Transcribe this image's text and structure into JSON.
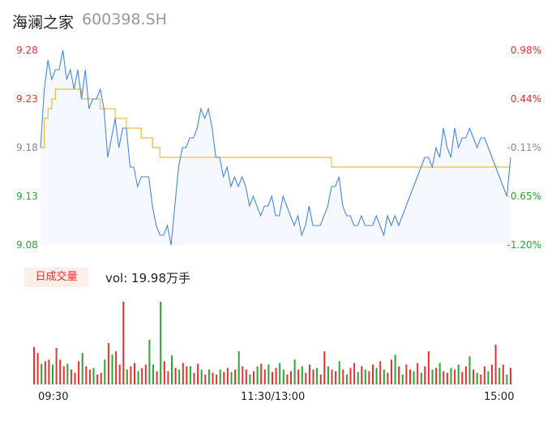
{
  "header": {
    "name": "海澜之家",
    "code": "600398.SH"
  },
  "volume_panel": {
    "tab_label": "日成交量",
    "vol_text": "vol: 19.98万手"
  },
  "chart_data": [
    {
      "type": "line",
      "name": "intraday",
      "y_tick_labels": [
        "9.28",
        "9.23",
        "9.18",
        "9.13",
        "9.08"
      ],
      "pct_tick_labels": [
        "0.98%",
        "0.44%",
        "-0.11%",
        "-0.65%",
        "-1.20%"
      ],
      "x_tick_labels": [
        "09:30",
        "11:30/13:00",
        "15:00"
      ],
      "ylim": [
        9.08,
        9.28
      ],
      "ref_price": 9.19,
      "colors": {
        "price": "#4a86e8",
        "avg": "#f5b942",
        "up": "#e8312f",
        "down": "#2aa530"
      },
      "series": [
        {
          "values": [
            9.18,
            9.24,
            9.27,
            9.25,
            9.26,
            9.26,
            9.28,
            9.25,
            9.26,
            9.24,
            9.26,
            9.23,
            9.26,
            9.22,
            9.23,
            9.23,
            9.24,
            9.22,
            9.17,
            9.19,
            9.21,
            9.18,
            9.2,
            9.2,
            9.16,
            9.16,
            9.14,
            9.15,
            9.15,
            9.15,
            9.12,
            9.1,
            9.09,
            9.09,
            9.1,
            9.08,
            9.12,
            9.16,
            9.18,
            9.18,
            9.19,
            9.19,
            9.2,
            9.22,
            9.21,
            9.22,
            9.2,
            9.17,
            9.17,
            9.15,
            9.16,
            9.14,
            9.15,
            9.14,
            9.15,
            9.14,
            9.12,
            9.13,
            9.12,
            9.11,
            9.12,
            9.12,
            9.13,
            9.11,
            9.11,
            9.13,
            9.12,
            9.11,
            9.1,
            9.11,
            9.09,
            9.1,
            9.12,
            9.1,
            9.1,
            9.1,
            9.11,
            9.12,
            9.14,
            9.14,
            9.15,
            9.12,
            9.11,
            9.11,
            9.1,
            9.1,
            9.11,
            9.1,
            9.1,
            9.1,
            9.11,
            9.1,
            9.09,
            9.11,
            9.1,
            9.11,
            9.1,
            9.11,
            9.12,
            9.13,
            9.14,
            9.15,
            9.16,
            9.17,
            9.17,
            9.16,
            9.18,
            9.17,
            9.2,
            9.18,
            9.17,
            9.2,
            9.18,
            9.19,
            9.19,
            9.2,
            9.19,
            9.18,
            9.19,
            9.19,
            9.18,
            9.17,
            9.16,
            9.15,
            9.14,
            9.13,
            9.17
          ]
        },
        {
          "values": [
            9.18,
            9.21,
            9.22,
            9.23,
            9.24,
            9.24,
            9.24,
            9.24,
            9.24,
            9.24,
            9.24,
            9.23,
            9.23,
            9.23,
            9.23,
            9.23,
            9.22,
            9.22,
            9.22,
            9.22,
            9.21,
            9.21,
            9.21,
            9.2,
            9.2,
            9.2,
            9.2,
            9.19,
            9.19,
            9.19,
            9.18,
            9.18,
            9.17,
            9.17,
            9.17,
            9.17,
            9.17,
            9.17,
            9.17,
            9.17,
            9.17,
            9.17,
            9.17,
            9.17,
            9.17,
            9.17,
            9.17,
            9.17,
            9.17,
            9.17,
            9.17,
            9.17,
            9.17,
            9.17,
            9.17,
            9.17,
            9.17,
            9.17,
            9.17,
            9.17,
            9.17,
            9.17,
            9.17,
            9.17,
            9.17,
            9.17,
            9.17,
            9.17,
            9.17,
            9.17,
            9.17,
            9.17,
            9.17,
            9.17,
            9.17,
            9.17,
            9.17,
            9.17,
            9.16,
            9.16,
            9.16,
            9.16,
            9.16,
            9.16,
            9.16,
            9.16,
            9.16,
            9.16,
            9.16,
            9.16,
            9.16,
            9.16,
            9.16,
            9.16,
            9.16,
            9.16,
            9.16,
            9.16,
            9.16,
            9.16,
            9.16,
            9.16,
            9.16,
            9.16,
            9.16,
            9.16,
            9.16,
            9.16,
            9.16,
            9.16,
            9.16,
            9.16,
            9.16,
            9.16,
            9.16,
            9.16,
            9.16,
            9.16,
            9.16,
            9.16,
            9.16,
            9.16,
            9.16,
            9.16,
            9.16,
            9.16,
            9.16
          ]
        }
      ]
    },
    {
      "type": "bar",
      "name": "volume",
      "values": [
        45,
        38,
        25,
        28,
        30,
        24,
        44,
        30,
        22,
        25,
        18,
        14,
        28,
        38,
        22,
        18,
        20,
        12,
        14,
        30,
        50,
        36,
        40,
        24,
        100,
        18,
        22,
        26,
        16,
        20,
        24,
        54,
        24,
        16,
        100,
        28,
        16,
        35,
        20,
        18,
        26,
        22,
        22,
        14,
        25,
        18,
        12,
        18,
        14,
        12,
        18,
        15,
        20,
        15,
        18,
        40,
        22,
        18,
        12,
        16,
        22,
        25,
        18,
        24,
        15,
        20,
        26,
        18,
        12,
        16,
        30,
        18,
        22,
        14,
        24,
        18,
        20,
        12,
        40,
        22,
        18,
        16,
        28,
        18,
        12,
        20,
        26,
        15,
        22,
        18,
        16,
        24,
        20,
        28,
        18,
        14,
        30,
        36,
        22,
        12,
        24,
        18,
        16,
        26,
        14,
        22,
        40,
        18,
        20,
        26,
        16,
        14,
        20,
        18,
        24,
        15,
        22,
        34,
        18,
        14,
        12,
        22,
        16,
        24,
        48,
        20,
        24,
        12,
        20
      ],
      "ups": [
        1,
        1,
        0,
        1,
        1,
        0,
        1,
        1,
        1,
        0,
        1,
        1,
        1,
        0,
        1,
        1,
        0,
        1,
        1,
        0,
        1,
        0,
        1,
        1,
        1,
        0,
        1,
        1,
        0,
        1,
        1,
        0,
        0,
        1,
        0,
        1,
        1,
        0,
        1,
        0,
        1,
        1,
        0,
        1,
        1,
        0,
        1,
        0,
        1,
        1,
        0,
        1,
        1,
        0,
        1,
        0,
        1,
        1,
        0,
        1,
        0,
        1,
        1,
        0,
        1,
        1,
        0,
        0,
        1,
        1,
        0,
        1,
        0,
        1,
        1,
        1,
        0,
        1,
        1,
        0,
        1,
        1,
        0,
        1,
        0,
        1,
        1,
        0,
        1,
        0,
        1,
        1,
        0,
        1,
        0,
        1,
        1,
        0,
        1,
        0,
        1,
        1,
        0,
        1,
        0,
        1,
        1,
        0,
        1,
        0,
        1,
        1,
        0,
        1,
        0,
        1,
        1,
        0,
        1,
        0,
        1,
        1,
        0,
        1,
        1,
        0,
        1,
        0,
        1
      ]
    }
  ]
}
